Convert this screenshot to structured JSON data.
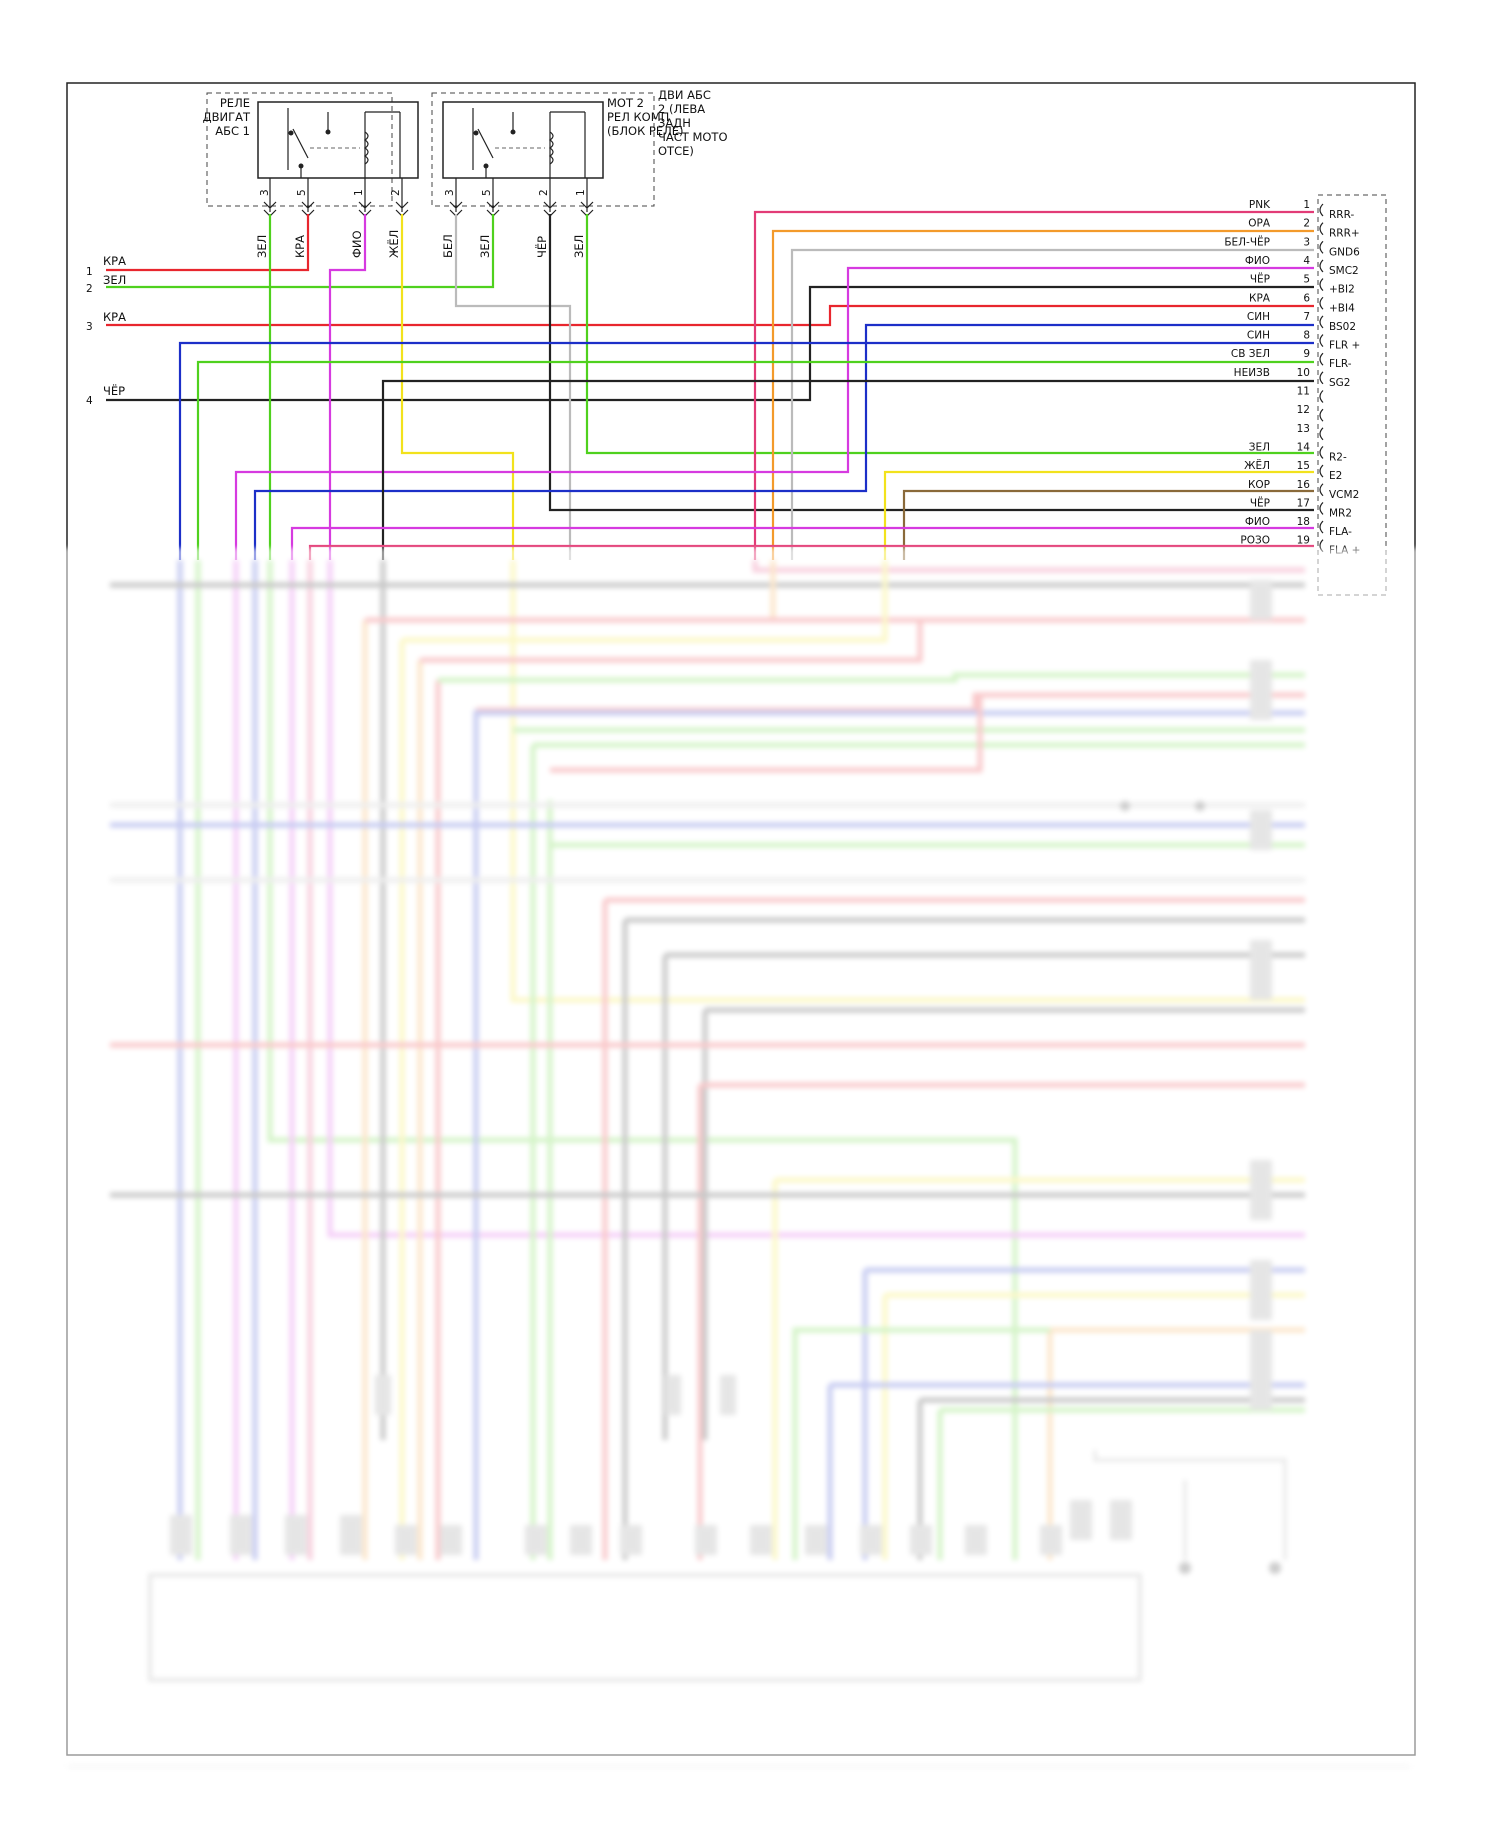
{
  "relays": {
    "relay1_label": [
      "РЕЛЕ",
      "ДВИГАТ",
      "АБС 1"
    ],
    "relay1_pins": [
      "3",
      "5",
      "1",
      "2"
    ],
    "relay2_label_left": [
      "МОТ 2",
      "РЕЛ КОМП",
      "(БЛОК РЕЛЕ)"
    ],
    "relay2_label_right": [
      "ДВИ АБС",
      "2 (ЛЕВА",
      "ЗАДН",
      "ЧАСТ МОТО",
      "ОТСЕ)"
    ],
    "relay2_pins": [
      "3",
      "5",
      "2",
      "1"
    ],
    "vertical_wire_labels": [
      "ЗЕЛ",
      "КРА",
      "ФИО",
      "ЖЁЛ",
      "БЕЛ",
      "ЗЕЛ",
      "ЧЁР",
      "ЗЕЛ"
    ]
  },
  "left_inputs": [
    {
      "num": "1",
      "label": "КРА",
      "color": "#e8262e"
    },
    {
      "num": "2",
      "label": "ЗЕЛ",
      "color": "#4fd11e"
    },
    {
      "num": "3",
      "label": "КРА",
      "color": "#e8262e"
    },
    {
      "num": "4",
      "label": "ЧЁР",
      "color": "#222222"
    }
  ],
  "connector": {
    "pins": [
      {
        "num": "1",
        "wire": "PNK",
        "name": "RRR-",
        "color": "#e23b76"
      },
      {
        "num": "2",
        "wire": "ОРА",
        "name": "RRR+",
        "color": "#f39a2b"
      },
      {
        "num": "3",
        "wire": "БЕЛ-ЧЁР",
        "name": "GND6",
        "color": "#9a9a9a"
      },
      {
        "num": "4",
        "wire": "ФИО",
        "name": "SMC2",
        "color": "#d63ae0"
      },
      {
        "num": "5",
        "wire": "ЧЁР",
        "name": "+BI2",
        "color": "#222222"
      },
      {
        "num": "6",
        "wire": "КРА",
        "name": "+BI4",
        "color": "#e8262e"
      },
      {
        "num": "7",
        "wire": "СИН",
        "name": "BS02",
        "color": "#1c2fc8"
      },
      {
        "num": "8",
        "wire": "СИН",
        "name": "FLR +",
        "color": "#1c2fc8"
      },
      {
        "num": "9",
        "wire": "СВ ЗЕЛ",
        "name": "FLR-",
        "color": "#4fd11e"
      },
      {
        "num": "10",
        "wire": "НЕИЗВ",
        "name": "SG2",
        "color": "#222222"
      },
      {
        "num": "11",
        "wire": "",
        "name": "",
        "color": ""
      },
      {
        "num": "12",
        "wire": "",
        "name": "",
        "color": ""
      },
      {
        "num": "13",
        "wire": "",
        "name": "",
        "color": ""
      },
      {
        "num": "14",
        "wire": "ЗЕЛ",
        "name": "R2-",
        "color": "#4fd11e"
      },
      {
        "num": "15",
        "wire": "ЖЁЛ",
        "name": "E2",
        "color": "#f2e21c"
      },
      {
        "num": "16",
        "wire": "КОР",
        "name": "VCM2",
        "color": "#8a6a3a"
      },
      {
        "num": "17",
        "wire": "ЧЁР",
        "name": "MR2",
        "color": "#222222"
      },
      {
        "num": "18",
        "wire": "ФИО",
        "name": "FLA-",
        "color": "#d63ae0"
      },
      {
        "num": "19",
        "wire": "РОЗО",
        "name": "FLA +",
        "color": "#e23b76"
      }
    ]
  },
  "colors": {
    "red": "#e8262e",
    "green": "#4fd11e",
    "blue": "#1c2fc8",
    "violet": "#d63ae0",
    "yellow": "#f2e21c",
    "orange": "#f39a2b",
    "pink": "#e23b76",
    "gray": "#9a9a9a",
    "black": "#222222",
    "brown": "#8a6a3a"
  }
}
